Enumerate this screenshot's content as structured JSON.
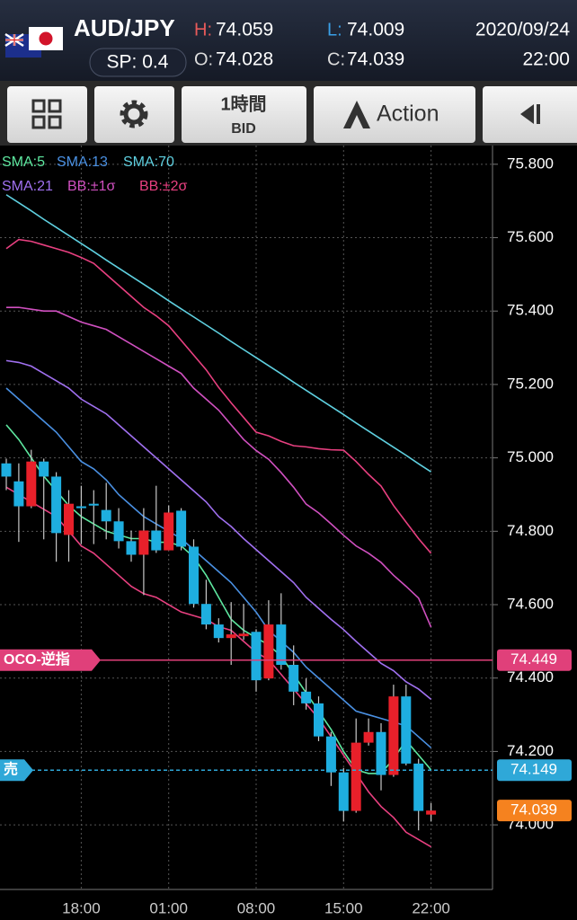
{
  "header": {
    "symbol": "AUD/JPY",
    "spread": "SP: 0.4",
    "high_label": "H:",
    "high": "74.059",
    "open_label": "O:",
    "open": "74.028",
    "low_label": "L:",
    "low": "74.009",
    "close_label": "C:",
    "close": "74.039",
    "date": "2020/09/24",
    "time": "22:00"
  },
  "toolbar": {
    "timeframe": "1時間",
    "price_type": "BID",
    "action": "Action"
  },
  "chart_data": {
    "type": "candlestick",
    "categories": [
      null,
      null,
      null,
      null,
      null,
      null,
      "18:00",
      null,
      null,
      null,
      null,
      null,
      null,
      "01:00",
      null,
      null,
      null,
      null,
      null,
      null,
      "08:00",
      null,
      null,
      null,
      null,
      null,
      null,
      "15:00",
      null,
      null,
      null,
      null,
      null,
      null,
      "22:00"
    ],
    "candles": {
      "open": [
        74.985,
        74.936,
        74.868,
        74.99,
        74.949,
        74.79,
        74.868,
        74.875,
        74.858,
        74.827,
        74.773,
        74.736,
        74.802,
        74.748,
        74.856,
        74.758,
        74.602,
        74.546,
        74.509,
        74.514,
        74.526,
        74.399,
        74.546,
        74.436,
        74.363,
        74.331,
        74.241,
        74.143,
        74.038,
        74.224,
        74.253,
        74.136,
        74.35,
        74.167,
        74.028
      ],
      "high": [
        74.998,
        74.985,
        75.022,
        74.998,
        74.961,
        74.912,
        74.924,
        74.912,
        74.932,
        74.863,
        74.802,
        74.863,
        74.924,
        74.87,
        74.863,
        74.778,
        74.668,
        74.563,
        74.607,
        74.602,
        74.533,
        74.612,
        74.631,
        74.489,
        74.399,
        74.35,
        74.253,
        74.155,
        74.29,
        74.29,
        74.277,
        74.382,
        74.382,
        74.18,
        74.059
      ],
      "low": [
        74.912,
        74.771,
        74.863,
        74.778,
        74.717,
        74.717,
        74.765,
        74.765,
        74.778,
        74.753,
        74.717,
        74.626,
        74.741,
        74.748,
        74.748,
        74.592,
        74.533,
        74.497,
        74.436,
        74.504,
        74.363,
        74.394,
        74.423,
        74.326,
        74.314,
        74.228,
        74.106,
        74.009,
        74.033,
        74.216,
        74.094,
        74.131,
        74.162,
        73.985,
        74.009
      ],
      "close": [
        74.949,
        74.868,
        74.99,
        74.949,
        74.795,
        74.875,
        74.863,
        74.87,
        74.827,
        74.773,
        74.736,
        74.802,
        74.748,
        74.851,
        74.758,
        74.602,
        74.546,
        74.509,
        74.519,
        74.521,
        74.394,
        74.546,
        74.436,
        74.363,
        74.331,
        74.241,
        74.143,
        74.038,
        74.224,
        74.253,
        74.136,
        74.35,
        74.167,
        74.038,
        74.039
      ]
    },
    "up_color": "#e8202a",
    "down_color": "#1eaee0",
    "indicators": [
      {
        "name": "SMA:5",
        "color": "#5ee8a0",
        "lines": [
          [
            75.09,
            75.05,
            75.0,
            74.95,
            74.91,
            74.87,
            74.84,
            74.82,
            74.8,
            74.79,
            74.78,
            74.78,
            74.77,
            74.77,
            74.76,
            74.73,
            74.68,
            74.62,
            74.56,
            74.53,
            74.51,
            74.49,
            74.46,
            74.41,
            74.36,
            74.31,
            74.26,
            74.2,
            74.15,
            74.14,
            74.14,
            74.18,
            74.23,
            74.19,
            74.15
          ]
        ]
      },
      {
        "name": "SMA:13",
        "color": "#4a90e2",
        "lines": [
          [
            75.19,
            75.16,
            75.13,
            75.1,
            75.07,
            75.03,
            74.99,
            74.97,
            74.94,
            74.9,
            74.87,
            74.84,
            74.82,
            74.8,
            74.78,
            74.75,
            74.72,
            74.69,
            74.66,
            74.62,
            74.58,
            74.53,
            74.5,
            74.47,
            74.43,
            74.4,
            74.37,
            74.34,
            74.31,
            74.3,
            74.29,
            74.28,
            74.27,
            74.24,
            74.21
          ]
        ]
      },
      {
        "name": "SMA:70",
        "color": "#5fd0e0",
        "lines": [
          [
            75.717,
            75.695,
            75.673,
            75.65,
            75.628,
            75.606,
            75.584,
            75.562,
            75.539,
            75.517,
            75.495,
            75.473,
            75.451,
            75.428,
            75.406,
            75.384,
            75.362,
            75.34,
            75.317,
            75.295,
            75.273,
            75.251,
            75.229,
            75.206,
            75.184,
            75.162,
            75.14,
            75.118,
            75.095,
            75.073,
            75.051,
            75.029,
            75.007,
            74.984,
            74.962
          ]
        ]
      },
      {
        "name": "SMA:21",
        "color": "#a070f0",
        "lines": [
          [
            75.265,
            75.26,
            75.25,
            75.23,
            75.21,
            75.19,
            75.16,
            75.14,
            75.12,
            75.09,
            75.06,
            75.03,
            75.0,
            74.97,
            74.94,
            74.91,
            74.88,
            74.84,
            74.813,
            74.78,
            74.75,
            74.72,
            74.69,
            74.66,
            74.62,
            74.59,
            74.56,
            74.532,
            74.5,
            74.47,
            74.44,
            74.42,
            74.39,
            74.37,
            74.342
          ]
        ]
      },
      {
        "name": "BB:±1σ",
        "color": "#d050c0",
        "lines": [
          [
            75.41,
            75.41,
            75.405,
            75.4,
            75.4,
            75.385,
            75.37,
            75.36,
            75.35,
            75.33,
            75.31,
            75.29,
            75.27,
            75.25,
            75.23,
            75.19,
            75.16,
            75.13,
            75.09,
            75.05,
            75.02,
            74.996,
            74.96,
            74.92,
            74.874,
            74.85,
            74.82,
            74.789,
            74.76,
            74.74,
            74.715,
            74.68,
            74.65,
            74.618,
            74.539
          ]
        ]
      },
      {
        "name": "BB:±2σ",
        "color": "#e84080",
        "lines": [
          [
            75.57,
            75.595,
            75.59,
            75.58,
            75.57,
            75.56,
            75.546,
            75.53,
            75.5,
            75.47,
            75.44,
            75.41,
            75.387,
            75.36,
            75.32,
            75.28,
            75.24,
            75.192,
            75.15,
            75.11,
            75.07,
            75.06,
            75.045,
            75.033,
            75.03,
            75.025,
            75.022,
            75.021,
            74.99,
            74.955,
            74.923,
            74.87,
            74.825,
            74.78,
            74.74
          ],
          [
            74.92,
            74.9,
            74.88,
            74.86,
            74.84,
            74.8,
            74.76,
            74.74,
            74.71,
            74.68,
            74.65,
            74.63,
            74.62,
            74.6,
            74.58,
            74.57,
            74.56,
            74.54,
            74.53,
            74.5,
            74.47,
            74.45,
            74.41,
            74.37,
            74.33,
            74.29,
            74.24,
            74.19,
            74.14,
            74.09,
            74.05,
            74.02,
            73.98,
            73.96,
            73.94
          ]
        ]
      }
    ],
    "orders": [
      {
        "label": "OCO-逆指",
        "value": 74.449,
        "color": "#e0407a",
        "dashed": false
      },
      {
        "label": "売",
        "value": 74.149,
        "color": "#2fa8d8",
        "dashed": true
      }
    ],
    "current_price": {
      "value": 74.039,
      "color": "#f5821f"
    },
    "ylim": [
      73.824,
      75.851
    ],
    "yticks": [
      {
        "value": 74.0,
        "label": "74.000"
      },
      {
        "value": 74.2,
        "label": "74.200"
      },
      {
        "value": 74.4,
        "label": "74.400"
      },
      {
        "value": 74.6,
        "label": "74.600"
      },
      {
        "value": 74.8,
        "label": "74.800"
      },
      {
        "value": 75.0,
        "label": "75.000"
      },
      {
        "value": 75.2,
        "label": "75.200"
      },
      {
        "value": 75.4,
        "label": "75.400"
      },
      {
        "value": 75.6,
        "label": "75.600"
      },
      {
        "value": 75.8,
        "label": "75.800"
      }
    ],
    "grid": true
  }
}
